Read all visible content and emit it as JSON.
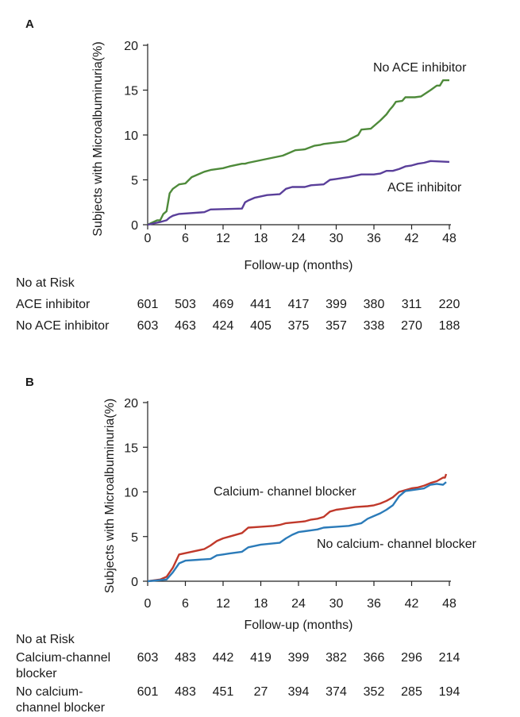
{
  "chart_data": [
    {
      "panel": "A",
      "type": "line",
      "xlabel": "Follow-up (months)",
      "ylabel": "Subjects with Microalbuminuria(%)",
      "xlim": [
        0,
        48
      ],
      "ylim": [
        0,
        20
      ],
      "xticks": [
        "0",
        "6",
        "12",
        "18",
        "24",
        "30",
        "36",
        "42",
        "48"
      ],
      "yticks": [
        "0",
        "5",
        "10",
        "15",
        "20"
      ],
      "grid": false,
      "series": [
        {
          "name": "No ACE inhibitor",
          "color": "#4e8a3a",
          "x": [
            0,
            1.5,
            2,
            2.5,
            3,
            3.5,
            4,
            5,
            6,
            7,
            9,
            10,
            12,
            13,
            15,
            15.5,
            16,
            21.5,
            22.5,
            23.5,
            25,
            26.5,
            27.5,
            28,
            31.5,
            33.5,
            34,
            35.5,
            37,
            38,
            38.5,
            39,
            39.5,
            40.5,
            41,
            42,
            42.5,
            43.5,
            45,
            46,
            46.5,
            47,
            47.5,
            48
          ],
          "y": [
            0,
            0.5,
            0.5,
            1.2,
            1.5,
            3.5,
            4,
            4.5,
            4.6,
            5.3,
            5.9,
            6.1,
            6.3,
            6.5,
            6.8,
            6.8,
            6.9,
            7.7,
            8.0,
            8.3,
            8.4,
            8.8,
            8.9,
            9.0,
            9.3,
            10.0,
            10.6,
            10.7,
            11.6,
            12.3,
            12.8,
            13.2,
            13.7,
            13.8,
            14.2,
            14.2,
            14.2,
            14.3,
            15.0,
            15.5,
            15.5,
            16.1,
            16.1,
            16.1
          ],
          "label": "No ACE inhibitor"
        },
        {
          "name": "ACE inhibitor",
          "color": "#5a3f9a",
          "x": [
            0,
            2,
            3,
            3.5,
            4,
            5,
            9,
            10,
            15,
            15.5,
            16,
            17,
            19,
            21,
            22,
            23,
            25,
            26,
            28,
            29,
            30,
            31,
            32,
            34,
            35,
            36,
            37,
            38,
            39,
            40,
            41,
            42,
            43,
            44,
            45,
            48
          ],
          "y": [
            0,
            0.3,
            0.5,
            0.8,
            1.0,
            1.2,
            1.4,
            1.7,
            1.8,
            2.5,
            2.7,
            3.0,
            3.3,
            3.4,
            4.0,
            4.2,
            4.2,
            4.4,
            4.5,
            5.0,
            5.1,
            5.2,
            5.3,
            5.6,
            5.6,
            5.6,
            5.7,
            6.0,
            6.0,
            6.2,
            6.5,
            6.6,
            6.8,
            6.9,
            7.1,
            7.0
          ],
          "label": "ACE inhibitor"
        }
      ],
      "risk_table": {
        "title": "No at Risk",
        "rows": [
          {
            "label": "ACE inhibitor",
            "values": [
              "601",
              "503",
              "469",
              "441",
              "417",
              "399",
              "380",
              "311",
              "220"
            ]
          },
          {
            "label": "No ACE inhibitor",
            "values": [
              "603",
              "463",
              "424",
              "405",
              "375",
              "357",
              "338",
              "270",
              "188"
            ]
          }
        ]
      }
    },
    {
      "panel": "B",
      "type": "line",
      "xlabel": "Follow-up (months)",
      "ylabel": "Subjects with Microalbuminuria(%)",
      "xlim": [
        0,
        48
      ],
      "ylim": [
        0,
        20
      ],
      "xticks": [
        "0",
        "6",
        "12",
        "18",
        "24",
        "30",
        "36",
        "42",
        "48"
      ],
      "yticks": [
        "0",
        "5",
        "10",
        "15",
        "20"
      ],
      "grid": false,
      "series": [
        {
          "name": "Calcium- channel blocker",
          "color": "#c0392b",
          "x": [
            0,
            2,
            3,
            4,
            5,
            7,
            9,
            10,
            11,
            12,
            13,
            15,
            16,
            18,
            20,
            21,
            22,
            25,
            26,
            27,
            28,
            29,
            30,
            31,
            33,
            35,
            36,
            37,
            38,
            39,
            40,
            41,
            42,
            43,
            44,
            45,
            46,
            47,
            47.3,
            47.5
          ],
          "y": [
            0,
            0.2,
            0.5,
            1.5,
            3.0,
            3.3,
            3.6,
            4.0,
            4.5,
            4.8,
            5.0,
            5.4,
            6.0,
            6.1,
            6.2,
            6.3,
            6.5,
            6.7,
            6.9,
            7.0,
            7.2,
            7.8,
            8.0,
            8.1,
            8.3,
            8.4,
            8.5,
            8.7,
            9.0,
            9.4,
            10.0,
            10.2,
            10.4,
            10.5,
            10.7,
            11.0,
            11.2,
            11.6,
            11.6,
            12.0
          ],
          "label": "Calcium- channel blocker"
        },
        {
          "name": "No calcium- channel blocker",
          "color": "#2b7bb9",
          "x": [
            0,
            3,
            4,
            5,
            6,
            8,
            10,
            11,
            12,
            13,
            15,
            16,
            18,
            21,
            22,
            23,
            24,
            25,
            26,
            27,
            28,
            30,
            32,
            34,
            35,
            36,
            37,
            38,
            39,
            40,
            41,
            42,
            44,
            45,
            46,
            47,
            47.5
          ],
          "y": [
            0,
            0.2,
            1.0,
            2.0,
            2.3,
            2.4,
            2.5,
            2.9,
            3.0,
            3.1,
            3.3,
            3.8,
            4.1,
            4.3,
            4.8,
            5.2,
            5.5,
            5.6,
            5.7,
            5.8,
            6.0,
            6.1,
            6.2,
            6.5,
            7.0,
            7.3,
            7.6,
            8.0,
            8.5,
            9.5,
            10.1,
            10.2,
            10.4,
            10.8,
            10.9,
            10.8,
            11.1
          ],
          "label": "No calcium- channel blocker"
        }
      ],
      "risk_table": {
        "title": "No at Risk",
        "rows": [
          {
            "label": "Calcium-channel",
            "label2": "blocker",
            "values": [
              "603",
              "483",
              "442",
              "419",
              "399",
              "382",
              "366",
              "296",
              "214"
            ]
          },
          {
            "label": "No calcium-",
            "label2": "channel blocker",
            "values": [
              "601",
              "483",
              "451",
              "27",
              "394",
              "374",
              "352",
              "285",
              "194"
            ]
          }
        ]
      }
    }
  ]
}
